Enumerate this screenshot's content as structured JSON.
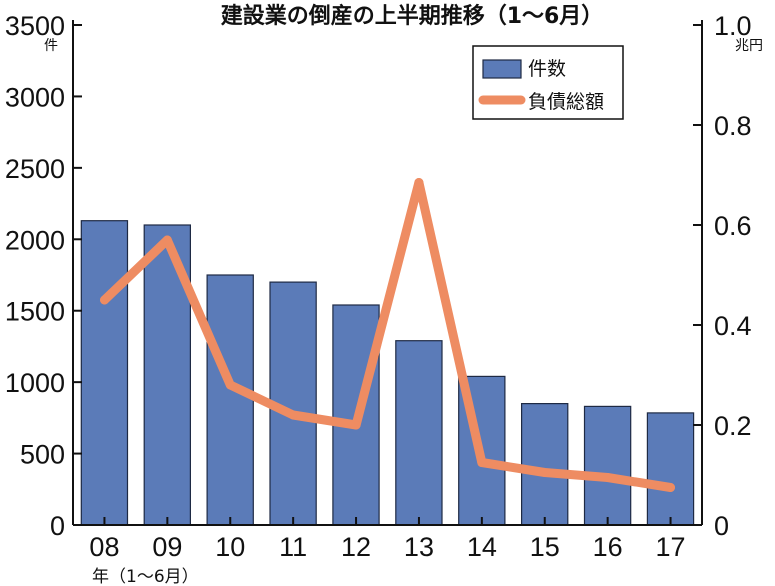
{
  "chart_data": {
    "type": "bar",
    "title": "建設業の倒産の上半期推移（1〜6月）",
    "categories": [
      "08",
      "09",
      "10",
      "11",
      "12",
      "13",
      "14",
      "15",
      "16",
      "17"
    ],
    "x_sublabel": "年（1〜6月）",
    "y_left": {
      "unit": "件",
      "ticks": [
        "0",
        "500",
        "1000",
        "1500",
        "2000",
        "2500",
        "3000",
        "3500"
      ],
      "ylim": [
        0,
        3500
      ]
    },
    "y_right": {
      "unit": "兆円",
      "ticks": [
        "0",
        "0.2",
        "0.4",
        "0.6",
        "0.8",
        "1.0"
      ],
      "ylim": [
        0,
        1.0
      ]
    },
    "series": [
      {
        "name": "件数",
        "kind": "bar",
        "axis": "left",
        "color": "#5b7bb8",
        "values": [
          2130,
          2100,
          1750,
          1700,
          1540,
          1290,
          1040,
          850,
          830,
          785
        ]
      },
      {
        "name": "負債総額",
        "kind": "line",
        "axis": "right",
        "color": "#ee8c62",
        "values": [
          0.45,
          0.57,
          0.28,
          0.22,
          0.2,
          0.685,
          0.125,
          0.105,
          0.095,
          0.075
        ]
      }
    ],
    "legend": "top-right",
    "grid": false
  }
}
